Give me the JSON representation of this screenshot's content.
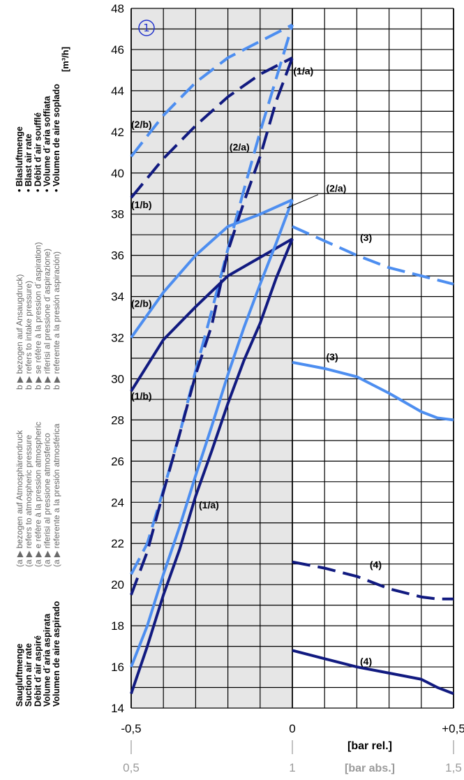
{
  "chart_data": {
    "type": "line",
    "marker": "1",
    "x_rel": {
      "label": "[bar rel.]",
      "range": [
        -0.5,
        0.5
      ],
      "ticks": [
        {
          "v": -0.5,
          "t": "-0,5"
        },
        {
          "v": 0,
          "t": "0"
        },
        {
          "v": 0.5,
          "t": "+0,5"
        }
      ]
    },
    "x_abs": {
      "label": "[bar abs.]",
      "ticks": [
        {
          "v": -0.5,
          "t": "0,5"
        },
        {
          "v": 0,
          "t": "1"
        },
        {
          "v": 0.5,
          "t": "1,5"
        }
      ]
    },
    "y": {
      "range": [
        14,
        48
      ],
      "ticks": [
        "14",
        "16",
        "18",
        "20",
        "22",
        "24",
        "26",
        "28",
        "30",
        "32",
        "34",
        "36",
        "38",
        "40",
        "42",
        "44",
        "46",
        "48"
      ],
      "unit": "[m³/h]"
    },
    "grid": true,
    "shaded_region_x": [
      -0.5,
      0
    ],
    "colors": {
      "dark": "#111a80",
      "light": "#4d8ef0"
    },
    "axis_title_blast": [
      "• Blasluftmenge",
      "• Blast air rate",
      "• Débit d´air soufflé",
      "• Volume d´aria soffiata",
      "• Volumen de aire soplado"
    ],
    "axis_title_suction": [
      "Saugluftmenge",
      "Suction air rate",
      "Débit d´air aspiré",
      "Volume d´aria aspirata",
      "Volumen de aire aspirado"
    ],
    "legend_a": [
      "(a ▶ bezogen auf Atmosphärendruck",
      "(a ▶ refers to atmospheric pressure",
      "(a ▶ e réfère à la pression atmospheric",
      "(a ▶ riferisi al pressione atmosferico",
      "(a ▶ referente a la presión atmosférica"
    ],
    "legend_b": [
      "b ▶ bezogen auf Ansaugdruck)",
      "b ▶ refers to intake pressure)",
      "b ▶ se réfère à la pression d´aspiration)",
      "b ▶ riferisi al pressione d´aspirazione)",
      "b ▶ referente a la presión aspiración)"
    ],
    "series": [
      {
        "color": "light",
        "dash": true,
        "x": [
          -0.5,
          -0.4,
          -0.3,
          -0.2,
          -0.1,
          0
        ],
        "y": [
          40.8,
          42.8,
          44.4,
          45.6,
          46.4,
          47.2
        ]
      },
      {
        "color": "dark",
        "dash": true,
        "x": [
          -0.5,
          -0.4,
          -0.3,
          -0.2,
          -0.1,
          0
        ],
        "y": [
          38.8,
          40.7,
          42.3,
          43.7,
          44.8,
          45.6
        ]
      },
      {
        "color": "light",
        "dash": true,
        "x": [
          -0.5,
          -0.45,
          -0.4,
          -0.35,
          -0.3,
          -0.25,
          -0.2,
          -0.15,
          -0.1,
          -0.05,
          0
        ],
        "y": [
          20.5,
          22.0,
          24.6,
          27.3,
          30.4,
          33.3,
          36.3,
          39.2,
          42.0,
          44.6,
          47.2
        ]
      },
      {
        "color": "dark",
        "dash": true,
        "x": [
          -0.5,
          -0.45,
          -0.4,
          -0.35,
          -0.3,
          -0.25,
          -0.2,
          -0.15,
          -0.1,
          -0.05,
          0
        ],
        "y": [
          19.5,
          21.6,
          24.5,
          27.3,
          30.2,
          32.6,
          36.2,
          38.6,
          40.8,
          43.5,
          45.6
        ]
      },
      {
        "color": "light",
        "dash": false,
        "x": [
          -0.5,
          -0.4,
          -0.3,
          -0.2,
          -0.1,
          0
        ],
        "y": [
          32.0,
          34.2,
          36.0,
          37.4,
          38.0,
          38.7
        ]
      },
      {
        "color": "dark",
        "dash": false,
        "x": [
          -0.5,
          -0.4,
          -0.3,
          -0.2,
          -0.1,
          0
        ],
        "y": [
          29.4,
          31.9,
          33.5,
          35.0,
          35.9,
          36.8
        ]
      },
      {
        "color": "light",
        "dash": false,
        "x": [
          -0.5,
          -0.45,
          -0.4,
          -0.35,
          -0.3,
          -0.25,
          -0.2,
          -0.15,
          -0.1,
          -0.05,
          0
        ],
        "y": [
          16.0,
          18.0,
          20.5,
          22.8,
          25.3,
          27.7,
          30.2,
          32.5,
          34.6,
          36.6,
          38.7
        ]
      },
      {
        "color": "dark",
        "dash": false,
        "x": [
          -0.5,
          -0.45,
          -0.4,
          -0.35,
          -0.3,
          -0.25,
          -0.2,
          -0.15,
          -0.1,
          -0.05,
          0
        ],
        "y": [
          14.7,
          17.0,
          19.5,
          21.7,
          24.3,
          26.5,
          28.8,
          30.9,
          32.7,
          34.9,
          36.8
        ]
      },
      {
        "color": "light",
        "dash": true,
        "x": [
          0,
          0.1,
          0.2,
          0.3,
          0.4,
          0.5
        ],
        "y": [
          37.4,
          36.7,
          36.0,
          35.4,
          35.0,
          34.6
        ]
      },
      {
        "color": "light",
        "dash": false,
        "x": [
          0,
          0.1,
          0.2,
          0.3,
          0.4,
          0.45,
          0.5
        ],
        "y": [
          30.8,
          30.5,
          30.1,
          29.3,
          28.4,
          28.1,
          28.0
        ]
      },
      {
        "color": "dark",
        "dash": true,
        "x": [
          0,
          0.1,
          0.2,
          0.3,
          0.4,
          0.45,
          0.5
        ],
        "y": [
          21.1,
          20.8,
          20.4,
          19.8,
          19.4,
          19.3,
          19.3
        ]
      },
      {
        "color": "dark",
        "dash": false,
        "x": [
          0,
          0.1,
          0.2,
          0.3,
          0.4,
          0.45,
          0.5
        ],
        "y": [
          16.8,
          16.4,
          16.0,
          15.7,
          15.4,
          15.0,
          14.7
        ]
      }
    ],
    "curve_labels": [
      {
        "t": "(2/b)",
        "x": -0.5,
        "y": 42.2
      },
      {
        "t": "(1/b)",
        "x": -0.5,
        "y": 38.3
      },
      {
        "t": "(1/a)",
        "x": 0.003,
        "y": 44.8
      },
      {
        "t": "(2/a)",
        "x": -0.195,
        "y": 41.1
      },
      {
        "t": "(2/a)",
        "x": 0.105,
        "y": 39.1
      },
      {
        "t": "(2/b)",
        "x": -0.5,
        "y": 33.5
      },
      {
        "t": "(1/b)",
        "x": -0.5,
        "y": 29.0
      },
      {
        "t": "(3)",
        "x": 0.21,
        "y": 36.7
      },
      {
        "t": "(3)",
        "x": 0.105,
        "y": 30.9
      },
      {
        "t": "(1/a)",
        "x": -0.29,
        "y": 23.7
      },
      {
        "t": "(4)",
        "x": 0.24,
        "y": 20.8
      },
      {
        "t": "(4)",
        "x": 0.21,
        "y": 16.1
      }
    ]
  }
}
